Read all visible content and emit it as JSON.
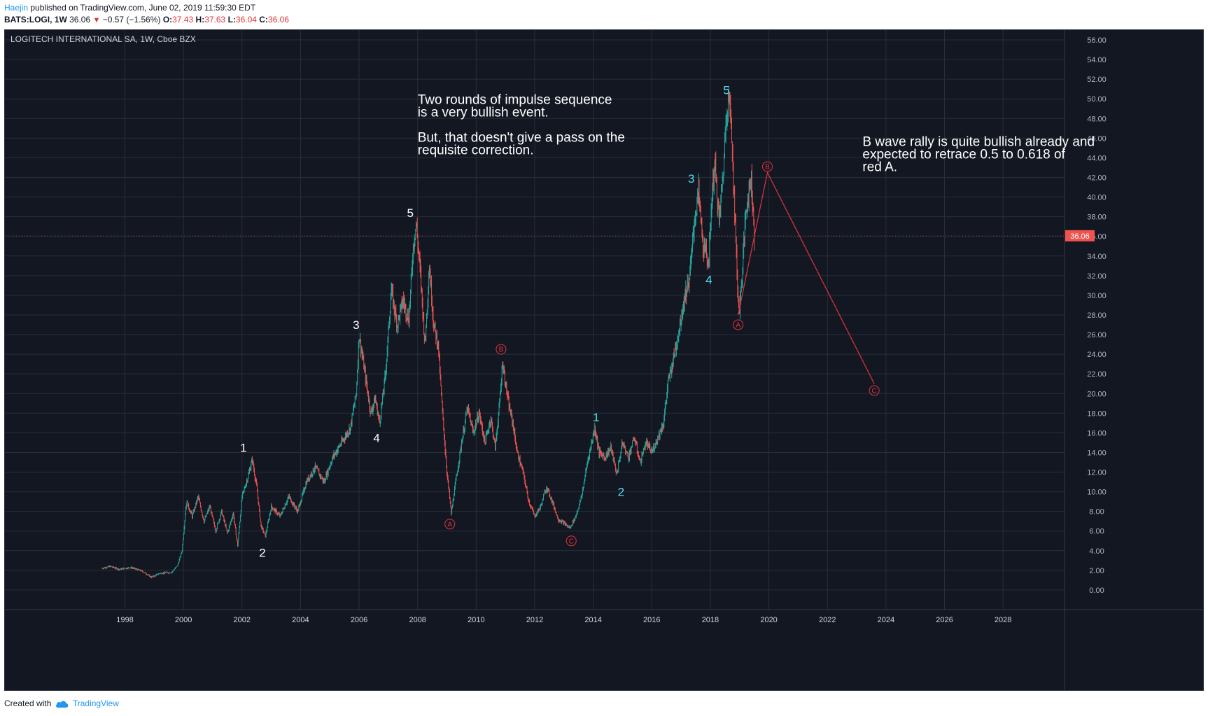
{
  "header": {
    "author": "Haejin",
    "published": "published on TradingView.com, June 02, 2019 11:59:30 EDT"
  },
  "quote": {
    "symbol": "BATS:LOGI, 1W",
    "last": "36.06",
    "arrow": "▼",
    "change": "−0.57 (−1.56%)",
    "o_label": "O:",
    "o": "37.43",
    "h_label": "H:",
    "h": "37.63",
    "l_label": "L:",
    "l": "36.04",
    "c_label": "C:",
    "c": "36.06"
  },
  "footer": {
    "prefix": "Created with",
    "brand": "TradingView"
  },
  "chart_data": {
    "type": "line",
    "title": "LOGITECH INTERNATIONAL SA, 1W, Cboe BZX",
    "x_ticks": [
      "1998",
      "2000",
      "2002",
      "2004",
      "2006",
      "2008",
      "2010",
      "2012",
      "2014",
      "2016",
      "2018",
      "2020",
      "2022",
      "2024",
      "2026",
      "2028"
    ],
    "y_ticks": [
      "0.00",
      "2.00",
      "4.00",
      "6.00",
      "8.00",
      "10.00",
      "12.00",
      "14.00",
      "16.00",
      "18.00",
      "20.00",
      "22.00",
      "24.00",
      "26.00",
      "28.00",
      "30.00",
      "32.00",
      "34.00",
      "36.00",
      "38.00",
      "40.00",
      "42.00",
      "44.00",
      "46.00",
      "48.00",
      "50.00",
      "52.00",
      "54.00",
      "56.00"
    ],
    "ylim": [
      -2,
      57
    ],
    "xlim": [
      1993.9,
      2030.1
    ],
    "last_price": 36.06,
    "last_price_label": "36.06",
    "colors": {
      "background": "#131722",
      "up": "#26a69a",
      "down": "#ef5350",
      "grid": "#2a2e39",
      "white_wave": "#ffffff",
      "cyan_wave": "#4de1f0",
      "red_wave": "#e0343c"
    },
    "price_path": [
      [
        1997.2,
        2.2
      ],
      [
        1997.5,
        2.4
      ],
      [
        1997.8,
        2.1
      ],
      [
        1998.2,
        2.3
      ],
      [
        1998.6,
        1.9
      ],
      [
        1998.9,
        1.3
      ],
      [
        1999.2,
        1.7
      ],
      [
        1999.6,
        1.8
      ],
      [
        1999.8,
        2.5
      ],
      [
        1999.95,
        4.0
      ],
      [
        2000.1,
        9.0
      ],
      [
        2000.3,
        7.5
      ],
      [
        2000.5,
        9.5
      ],
      [
        2000.7,
        7.0
      ],
      [
        2000.9,
        8.5
      ],
      [
        2001.1,
        6.0
      ],
      [
        2001.3,
        8.0
      ],
      [
        2001.5,
        5.8
      ],
      [
        2001.7,
        7.8
      ],
      [
        2001.85,
        4.5
      ],
      [
        2002.0,
        9.5
      ],
      [
        2002.2,
        11.5
      ],
      [
        2002.35,
        13.3
      ],
      [
        2002.5,
        10.5
      ],
      [
        2002.65,
        6.5
      ],
      [
        2002.8,
        5.5
      ],
      [
        2003.0,
        8.5
      ],
      [
        2003.3,
        7.5
      ],
      [
        2003.6,
        9.5
      ],
      [
        2003.9,
        8.0
      ],
      [
        2004.2,
        11.0
      ],
      [
        2004.5,
        12.5
      ],
      [
        2004.8,
        11.0
      ],
      [
        2005.1,
        13.5
      ],
      [
        2005.4,
        15.0
      ],
      [
        2005.7,
        16.5
      ],
      [
        2005.9,
        20.0
      ],
      [
        2006.0,
        26.0
      ],
      [
        2006.2,
        22.0
      ],
      [
        2006.4,
        18.0
      ],
      [
        2006.55,
        19.5
      ],
      [
        2006.7,
        17.0
      ],
      [
        2006.9,
        22.0
      ],
      [
        2007.1,
        30.5
      ],
      [
        2007.3,
        27.0
      ],
      [
        2007.5,
        29.5
      ],
      [
        2007.7,
        27.5
      ],
      [
        2007.85,
        35.0
      ],
      [
        2007.95,
        37.3
      ],
      [
        2008.1,
        32.0
      ],
      [
        2008.25,
        25.0
      ],
      [
        2008.4,
        33.0
      ],
      [
        2008.55,
        27.0
      ],
      [
        2008.7,
        25.0
      ],
      [
        2008.85,
        18.0
      ],
      [
        2009.0,
        12.0
      ],
      [
        2009.15,
        7.8
      ],
      [
        2009.3,
        11.0
      ],
      [
        2009.5,
        15.0
      ],
      [
        2009.7,
        18.5
      ],
      [
        2009.9,
        16.0
      ],
      [
        2010.1,
        18.0
      ],
      [
        2010.3,
        15.0
      ],
      [
        2010.5,
        17.5
      ],
      [
        2010.65,
        14.5
      ],
      [
        2010.8,
        19.0
      ],
      [
        2010.9,
        23.2
      ],
      [
        2011.1,
        19.0
      ],
      [
        2011.25,
        17.0
      ],
      [
        2011.4,
        14.0
      ],
      [
        2011.6,
        12.0
      ],
      [
        2011.8,
        9.0
      ],
      [
        2012.0,
        7.5
      ],
      [
        2012.2,
        8.5
      ],
      [
        2012.4,
        10.5
      ],
      [
        2012.6,
        9.0
      ],
      [
        2012.8,
        7.2
      ],
      [
        2013.0,
        6.8
      ],
      [
        2013.2,
        6.3
      ],
      [
        2013.4,
        7.5
      ],
      [
        2013.6,
        9.5
      ],
      [
        2013.8,
        13.0
      ],
      [
        2014.05,
        16.5
      ],
      [
        2014.2,
        14.0
      ],
      [
        2014.4,
        13.5
      ],
      [
        2014.6,
        14.5
      ],
      [
        2014.8,
        11.8
      ],
      [
        2015.0,
        15.0
      ],
      [
        2015.2,
        13.5
      ],
      [
        2015.4,
        15.5
      ],
      [
        2015.6,
        13.0
      ],
      [
        2015.8,
        15.0
      ],
      [
        2016.0,
        14.0
      ],
      [
        2016.2,
        15.5
      ],
      [
        2016.4,
        17.0
      ],
      [
        2016.55,
        21.0
      ],
      [
        2016.7,
        23.0
      ],
      [
        2016.9,
        26.0
      ],
      [
        2017.1,
        29.5
      ],
      [
        2017.3,
        32.0
      ],
      [
        2017.45,
        37.5
      ],
      [
        2017.6,
        40.5
      ],
      [
        2017.75,
        35.0
      ],
      [
        2017.95,
        33.5
      ],
      [
        2018.05,
        40.0
      ],
      [
        2018.15,
        43.5
      ],
      [
        2018.3,
        37.5
      ],
      [
        2018.45,
        43.0
      ],
      [
        2018.55,
        49.0
      ],
      [
        2018.65,
        50.1
      ],
      [
        2018.75,
        45.0
      ],
      [
        2018.85,
        37.0
      ],
      [
        2018.95,
        29.5
      ],
      [
        2019.0,
        28.5
      ],
      [
        2019.1,
        33.0
      ],
      [
        2019.2,
        38.0
      ],
      [
        2019.3,
        40.5
      ],
      [
        2019.4,
        42.0
      ],
      [
        2019.5,
        36.06
      ]
    ],
    "projection": [
      [
        2018.95,
        28.0
      ],
      [
        2019.95,
        42.5
      ],
      [
        2023.6,
        21.0
      ]
    ],
    "wave_labels": [
      {
        "text": "1",
        "x": 2002.05,
        "y": 14.5,
        "group": "white"
      },
      {
        "text": "2",
        "x": 2002.7,
        "y": 3.8,
        "group": "white"
      },
      {
        "text": "3",
        "x": 2005.9,
        "y": 27.0,
        "group": "white"
      },
      {
        "text": "4",
        "x": 2006.6,
        "y": 15.5,
        "group": "white"
      },
      {
        "text": "5",
        "x": 2007.75,
        "y": 38.4,
        "group": "white"
      },
      {
        "text": "1",
        "x": 2014.1,
        "y": 17.6,
        "group": "cyan"
      },
      {
        "text": "2",
        "x": 2014.95,
        "y": 10.0,
        "group": "cyan"
      },
      {
        "text": "3",
        "x": 2017.35,
        "y": 41.9,
        "group": "cyan"
      },
      {
        "text": "4",
        "x": 2017.95,
        "y": 31.6,
        "group": "cyan"
      },
      {
        "text": "5",
        "x": 2018.55,
        "y": 50.9,
        "group": "cyan"
      },
      {
        "text": "A",
        "x": 2009.1,
        "y": 6.7,
        "group": "red"
      },
      {
        "text": "B",
        "x": 2010.85,
        "y": 24.5,
        "group": "red"
      },
      {
        "text": "C",
        "x": 2013.25,
        "y": 5.0,
        "group": "red"
      },
      {
        "text": "A",
        "x": 2018.95,
        "y": 27.0,
        "group": "red"
      },
      {
        "text": "B",
        "x": 2019.95,
        "y": 43.1,
        "group": "red"
      },
      {
        "text": "C",
        "x": 2023.6,
        "y": 20.3,
        "group": "red"
      }
    ],
    "annotations": [
      {
        "lines": [
          "Two rounds of impulse sequence",
          "is a very bullish event.",
          "",
          "But, that doesn't give a pass on the",
          "requisite correction."
        ],
        "x": 2008.0,
        "y": 49.5
      },
      {
        "lines": [
          "B wave rally is quite bullish already and",
          "expected to retrace 0.5 to 0.618 of",
          "red A."
        ],
        "x": 2023.2,
        "y": 45.2
      }
    ]
  }
}
